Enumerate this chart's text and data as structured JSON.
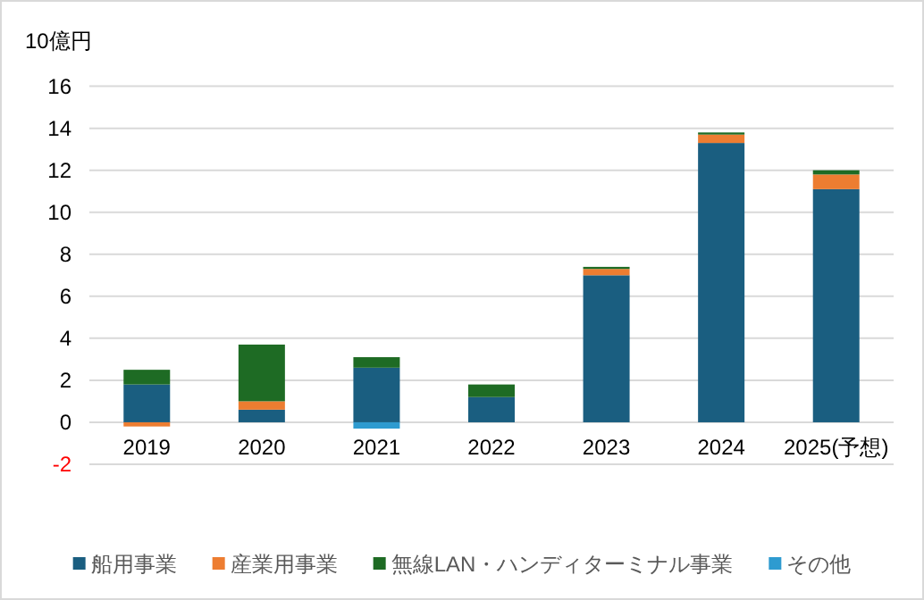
{
  "chart_data": {
    "type": "bar",
    "stacked": true,
    "ylabel": "10億円",
    "categories": [
      "2019",
      "2020",
      "2021",
      "2022",
      "2023",
      "2024",
      "2025(予想)"
    ],
    "series": [
      {
        "name": "船用事業",
        "color": "#1a5e80",
        "values": [
          1.8,
          0.6,
          2.6,
          1.2,
          7.0,
          13.3,
          11.1
        ]
      },
      {
        "name": "産業用事業",
        "color": "#ed7d31",
        "values": [
          -0.2,
          0.4,
          null,
          null,
          0.3,
          0.4,
          0.7
        ]
      },
      {
        "name": "無線LAN・ハンディターミナル事業",
        "color": "#1e6b24",
        "values": [
          0.7,
          2.7,
          0.5,
          0.6,
          0.1,
          0.1,
          0.2
        ]
      },
      {
        "name": "その他",
        "color": "#2e9bd0",
        "values": [
          null,
          null,
          -0.3,
          null,
          null,
          null,
          null
        ]
      }
    ],
    "ylim": [
      -2,
      16
    ],
    "yticks": [
      -2,
      0,
      2,
      4,
      6,
      8,
      10,
      12,
      14,
      16
    ],
    "grid": "y",
    "legend": "bottom"
  }
}
